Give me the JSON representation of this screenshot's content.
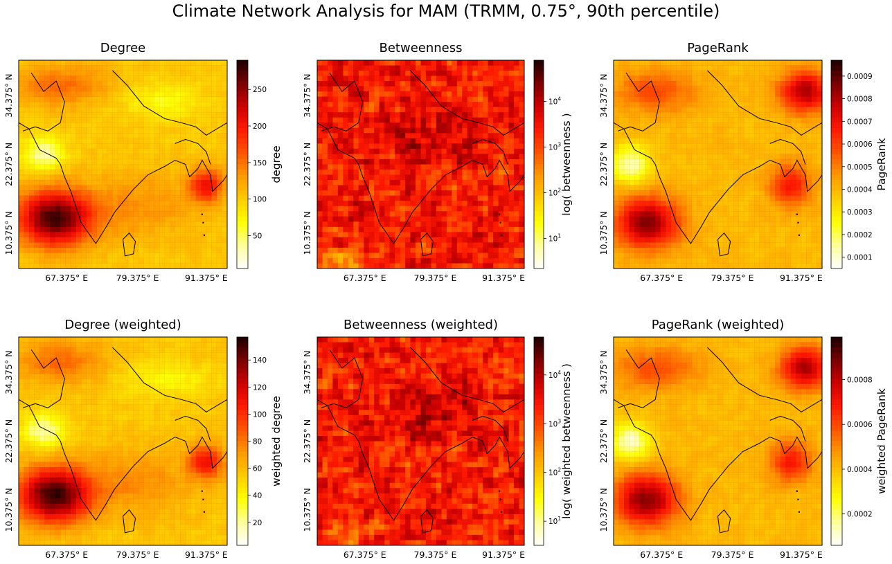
{
  "figure": {
    "title": "Climate Network Analysis for MAM (TRMM, 0.75°, 90th percentile)"
  },
  "colormap": {
    "name": "hot_r",
    "stops": [
      "#ffffff",
      "#ffff9a",
      "#ffff00",
      "#ffcc00",
      "#ff9900",
      "#ff5500",
      "#ff1a00",
      "#cc0000",
      "#7a0000",
      "#1a0000"
    ]
  },
  "chart_data": [
    {
      "type": "heatmap",
      "title": "Degree",
      "colorbar_label": "degree",
      "colorbar_scale": "linear",
      "value_range": [
        5,
        290
      ],
      "colorbar_ticks": [
        "50",
        "100",
        "150",
        "200",
        "250"
      ],
      "colorbar_tick_values": [
        50,
        100,
        150,
        200,
        250
      ],
      "x_ticks": [
        "67.375° E",
        "79.375° E",
        "91.375° E"
      ],
      "y_ticks": [
        "34.375° N",
        "22.375° N",
        "10.375° N"
      ],
      "field": "degree"
    },
    {
      "type": "heatmap",
      "title": "Betweenness",
      "colorbar_label": "log( betweenness )",
      "colorbar_scale": "log",
      "value_range": [
        2.2,
        80000
      ],
      "colorbar_ticks": [
        "10",
        "10",
        "10",
        "10"
      ],
      "colorbar_tick_exponents": [
        "1",
        "2",
        "3",
        "4"
      ],
      "colorbar_tick_values": [
        10,
        100,
        1000,
        10000
      ],
      "x_ticks": [
        "67.375° E",
        "79.375° E",
        "91.375° E"
      ],
      "y_ticks": [
        "34.375° N",
        "22.375° N",
        "10.375° N"
      ],
      "field": "betweenness"
    },
    {
      "type": "heatmap",
      "title": "PageRank",
      "colorbar_label": "PageRank",
      "colorbar_scale": "linear",
      "value_range": [
        5e-05,
        0.00097
      ],
      "colorbar_ticks": [
        "0.0001",
        "0.0002",
        "0.0003",
        "0.0004",
        "0.0005",
        "0.0006",
        "0.0007",
        "0.0008",
        "0.0009"
      ],
      "colorbar_tick_values": [
        0.0001,
        0.0002,
        0.0003,
        0.0004,
        0.0005,
        0.0006,
        0.0007,
        0.0008,
        0.0009
      ],
      "x_ticks": [
        "67.375° E",
        "79.375° E",
        "91.375° E"
      ],
      "y_ticks": [
        "34.375° N",
        "22.375° N",
        "10.375° N"
      ],
      "field": "pagerank"
    },
    {
      "type": "heatmap",
      "title": "Degree (weighted)",
      "colorbar_label": "weighted degree",
      "colorbar_scale": "linear",
      "value_range": [
        3,
        157
      ],
      "colorbar_ticks": [
        "20",
        "40",
        "60",
        "80",
        "100",
        "120",
        "140"
      ],
      "colorbar_tick_values": [
        20,
        40,
        60,
        80,
        100,
        120,
        140
      ],
      "x_ticks": [
        "67.375° E",
        "79.375° E",
        "91.375° E"
      ],
      "y_ticks": [
        "34.375° N",
        "22.375° N",
        "10.375° N"
      ],
      "field": "degree"
    },
    {
      "type": "heatmap",
      "title": "Betweenness (weighted)",
      "colorbar_label": "log( weighted betweenness )",
      "colorbar_scale": "log",
      "value_range": [
        3.2,
        60000
      ],
      "colorbar_ticks": [
        "10",
        "10",
        "10",
        "10"
      ],
      "colorbar_tick_exponents": [
        "1",
        "2",
        "3",
        "4"
      ],
      "colorbar_tick_values": [
        10,
        100,
        1000,
        10000
      ],
      "x_ticks": [
        "67.375° E",
        "79.375° E",
        "91.375° E"
      ],
      "y_ticks": [
        "34.375° N",
        "22.375° N",
        "10.375° N"
      ],
      "field": "betweenness"
    },
    {
      "type": "heatmap",
      "title": "PageRank (weighted)",
      "colorbar_label": "weighted PageRank",
      "colorbar_scale": "linear",
      "value_range": [
        6e-05,
        0.00099
      ],
      "colorbar_ticks": [
        "0.0002",
        "0.0004",
        "0.0006",
        "0.0008"
      ],
      "colorbar_tick_values": [
        0.0002,
        0.0004,
        0.0006,
        0.0008
      ],
      "x_ticks": [
        "67.375° E",
        "79.375° E",
        "91.375° E"
      ],
      "y_ticks": [
        "34.375° N",
        "22.375° N",
        "10.375° N"
      ],
      "field": "pagerank"
    }
  ]
}
